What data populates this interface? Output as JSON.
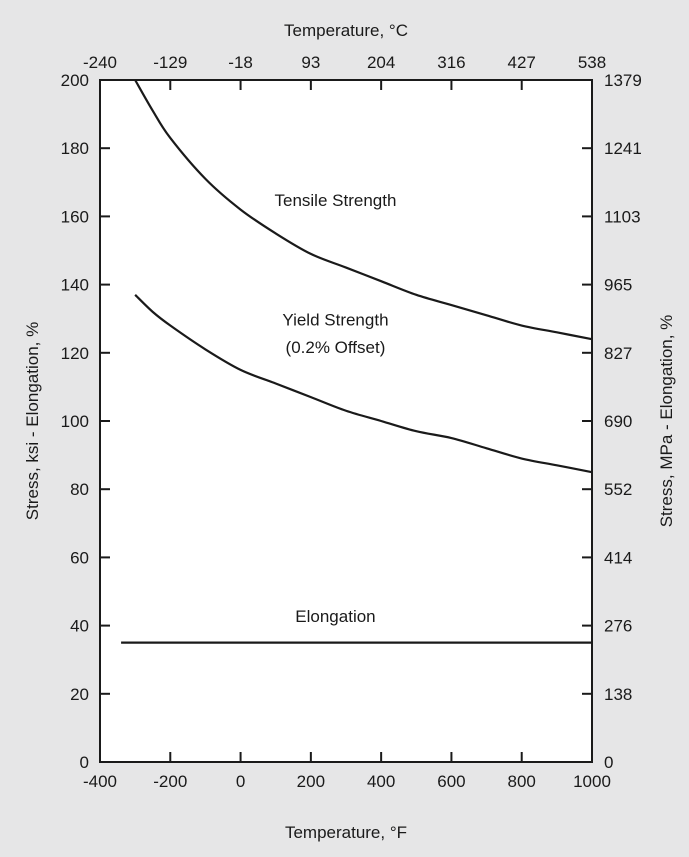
{
  "chart_data": {
    "type": "line",
    "title": "",
    "xlabel": "Temperature, °F",
    "x2label": "Temperature, °C",
    "ylabel": "Stress, ksi - Elongation, %",
    "y2label": "Stress, MPa - Elongation, %",
    "xlim": [
      -400,
      1000
    ],
    "ylim": [
      0,
      200
    ],
    "x_ticks": [
      -400,
      -200,
      0,
      200,
      400,
      600,
      800,
      1000
    ],
    "y_ticks": [
      0,
      20,
      40,
      60,
      80,
      100,
      120,
      140,
      160,
      180,
      200
    ],
    "x2_ticks": [
      {
        "label": "-240",
        "at_f": -400
      },
      {
        "label": "-129",
        "at_f": -200
      },
      {
        "label": "-18",
        "at_f": 0
      },
      {
        "label": "93",
        "at_f": 200
      },
      {
        "label": "204",
        "at_f": 400
      },
      {
        "label": "316",
        "at_f": 600
      },
      {
        "label": "427",
        "at_f": 800
      },
      {
        "label": "538",
        "at_f": 1000
      }
    ],
    "y2_ticks": [
      {
        "label": "0",
        "at_ksi": 0
      },
      {
        "label": "138",
        "at_ksi": 20
      },
      {
        "label": "276",
        "at_ksi": 40
      },
      {
        "label": "414",
        "at_ksi": 60
      },
      {
        "label": "552",
        "at_ksi": 80
      },
      {
        "label": "690",
        "at_ksi": 100
      },
      {
        "label": "827",
        "at_ksi": 120
      },
      {
        "label": "965",
        "at_ksi": 140
      },
      {
        "label": "1103",
        "at_ksi": 160
      },
      {
        "label": "1241",
        "at_ksi": 180
      },
      {
        "label": "1379",
        "at_ksi": 200
      }
    ],
    "grid": false,
    "series": [
      {
        "name": "Tensile Strength",
        "x": [
          -300,
          -250,
          -200,
          -100,
          0,
          100,
          200,
          300,
          400,
          500,
          600,
          700,
          800,
          900,
          1000
        ],
        "y": [
          200,
          191,
          183,
          171,
          162,
          155,
          149,
          145,
          141,
          137,
          134,
          131,
          128,
          126,
          124
        ]
      },
      {
        "name": "Yield Strength\n(0.2% Offset)",
        "x": [
          -300,
          -250,
          -200,
          -100,
          0,
          100,
          200,
          300,
          400,
          500,
          600,
          700,
          800,
          900,
          1000
        ],
        "y": [
          137,
          132,
          128,
          121,
          115,
          111,
          107,
          103,
          100,
          97,
          95,
          92,
          89,
          87,
          85
        ]
      },
      {
        "name": "Elongation",
        "x": [
          -340,
          1000
        ],
        "y": [
          35,
          35
        ]
      }
    ],
    "annotations": [
      {
        "text": "Tensile Strength",
        "x": 270,
        "y": 163
      },
      {
        "text": "Yield Strength",
        "x": 270,
        "y": 128
      },
      {
        "text": "(0.2% Offset)",
        "x": 270,
        "y": 120
      },
      {
        "text": "Elongation",
        "x": 270,
        "y": 41
      }
    ]
  }
}
